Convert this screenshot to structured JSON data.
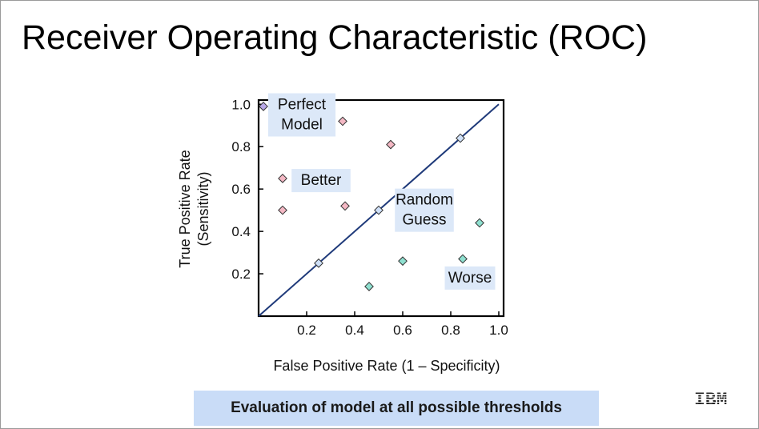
{
  "slide": {
    "title": "Receiver Operating Characteristic (ROC)",
    "caption": "Evaluation of model at all possible thresholds",
    "logo": "IBM"
  },
  "colors": {
    "diagonal": "#1f3a7a",
    "perfect": "#b8a8e8",
    "better": "#f4b8c4",
    "random": "#cfe0f8",
    "worse": "#8fe0d0",
    "label_bg": "#dce8f8"
  },
  "chart_data": {
    "type": "scatter",
    "xlabel": "False Positive Rate (1 – Specificity)",
    "ylabel": "True Positive Rate",
    "ylabel_sub": "(Sensitivity)",
    "xlim": [
      0,
      1.02
    ],
    "ylim": [
      0,
      1.02
    ],
    "x_ticks": [
      0.2,
      0.4,
      0.6,
      0.8,
      1.0
    ],
    "x_tick_labels": [
      "0.2",
      "0.4",
      "0.6",
      "0.8",
      "1.0"
    ],
    "y_ticks": [
      0.2,
      0.4,
      0.6,
      0.8,
      1.0
    ],
    "y_tick_labels": [
      "0.2",
      "0.4",
      "0.6",
      "0.8",
      "1.0"
    ],
    "grid": false,
    "diagonal": [
      [
        0,
        0
      ],
      [
        1.0,
        1.0
      ]
    ],
    "series": [
      {
        "group": "perfect",
        "points": [
          [
            0.02,
            0.99
          ]
        ]
      },
      {
        "group": "better",
        "points": [
          [
            0.35,
            0.92
          ],
          [
            0.55,
            0.81
          ],
          [
            0.1,
            0.65
          ],
          [
            0.36,
            0.52
          ],
          [
            0.1,
            0.5
          ]
        ]
      },
      {
        "group": "random",
        "points": [
          [
            0.84,
            0.84
          ],
          [
            0.5,
            0.5
          ],
          [
            0.25,
            0.25
          ]
        ]
      },
      {
        "group": "worse",
        "points": [
          [
            0.92,
            0.44
          ],
          [
            0.6,
            0.26
          ],
          [
            0.85,
            0.27
          ],
          [
            0.46,
            0.14
          ]
        ]
      }
    ],
    "annotations": [
      {
        "lines": [
          "Perfect",
          "Model"
        ],
        "x": 0.18,
        "y": 0.95
      },
      {
        "lines": [
          "Better"
        ],
        "x": 0.26,
        "y": 0.64
      },
      {
        "lines": [
          "Random",
          "Guess"
        ],
        "x": 0.69,
        "y": 0.5
      },
      {
        "lines": [
          "Worse"
        ],
        "x": 0.88,
        "y": 0.18
      }
    ]
  }
}
